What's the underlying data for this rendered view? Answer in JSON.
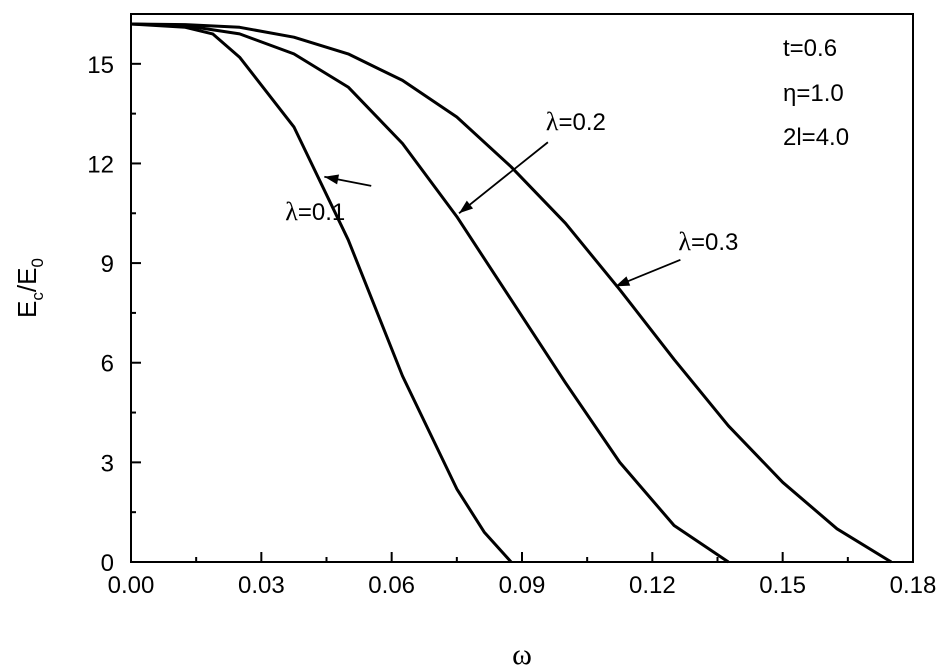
{
  "chart_data": {
    "type": "line",
    "xlabel": "ω",
    "ylabel_main": "E",
    "ylabel_sub1": "c",
    "ylabel_slash": "/E",
    "ylabel_sub2": "0",
    "xlim": [
      0,
      0.18
    ],
    "ylim": [
      0,
      16.5
    ],
    "x_ticks": [
      "0.00",
      "0.03",
      "0.06",
      "0.09",
      "0.12",
      "0.15",
      "0.18"
    ],
    "x_tick_values": [
      0,
      0.03,
      0.06,
      0.09,
      0.12,
      0.15,
      0.18
    ],
    "y_ticks": [
      "0",
      "3",
      "6",
      "9",
      "12",
      "15"
    ],
    "y_tick_values": [
      0,
      3,
      6,
      9,
      12,
      15
    ],
    "series": [
      {
        "name": "λ=0.1",
        "x": [
          0,
          0.0125,
          0.0188,
          0.025,
          0.0375,
          0.05,
          0.0625,
          0.075,
          0.0813,
          0.0875
        ],
        "y": [
          16.2,
          16.1,
          15.9,
          15.2,
          13.1,
          9.7,
          5.6,
          2.2,
          0.9,
          0
        ]
      },
      {
        "name": "λ=0.2",
        "x": [
          0,
          0.0125,
          0.025,
          0.0375,
          0.05,
          0.0625,
          0.075,
          0.0875,
          0.1,
          0.1125,
          0.125,
          0.1375
        ],
        "y": [
          16.2,
          16.15,
          15.9,
          15.3,
          14.3,
          12.6,
          10.4,
          7.9,
          5.4,
          3.0,
          1.1,
          0
        ]
      },
      {
        "name": "λ=0.3",
        "x": [
          0,
          0.0125,
          0.025,
          0.0375,
          0.05,
          0.0625,
          0.075,
          0.0875,
          0.1,
          0.1125,
          0.125,
          0.1375,
          0.15,
          0.1625,
          0.175
        ],
        "y": [
          16.2,
          16.18,
          16.1,
          15.8,
          15.3,
          14.5,
          13.4,
          11.9,
          10.2,
          8.2,
          6.1,
          4.1,
          2.4,
          1.0,
          0
        ]
      }
    ],
    "annotations": [
      {
        "text": "λ=0.1",
        "x": 0.0355,
        "y": 10.3,
        "arrow_to_x": 0.0445,
        "arrow_to_y": 11.6
      },
      {
        "text": "λ=0.2",
        "x": 0.0955,
        "y": 13.0,
        "arrow_to_x": 0.0755,
        "arrow_to_y": 10.5
      },
      {
        "text": "λ=0.3",
        "x": 0.126,
        "y": 9.4,
        "arrow_to_x": 0.1115,
        "arrow_to_y": 8.3
      }
    ],
    "params": [
      "t=0.6",
      "η=1.0",
      "2l=4.0"
    ],
    "grid": false,
    "legend": "none"
  }
}
